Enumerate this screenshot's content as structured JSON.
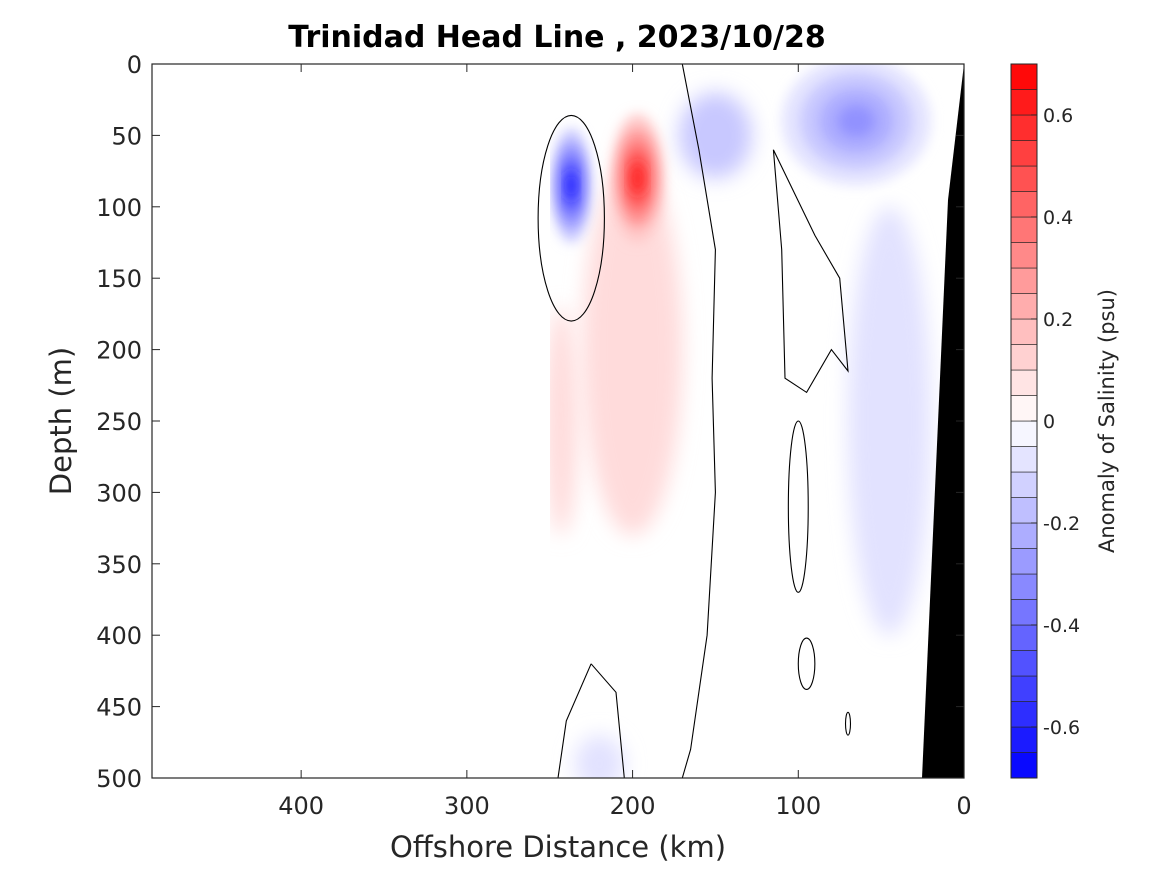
{
  "chart_data": {
    "type": "heatmap",
    "title": "Trinidad Head Line , 2023/10/28",
    "xlabel": "Offshore Distance (km)",
    "ylabel": "Depth (m)",
    "xlim": [
      490,
      0
    ],
    "ylim": [
      0,
      500
    ],
    "x_ticks": [
      {
        "value": 400,
        "label": "400"
      },
      {
        "value": 300,
        "label": "300"
      },
      {
        "value": 200,
        "label": "200"
      },
      {
        "value": 100,
        "label": "100"
      },
      {
        "value": 0,
        "label": "0"
      }
    ],
    "y_ticks": [
      {
        "value": 0,
        "label": "0"
      },
      {
        "value": 50,
        "label": "50"
      },
      {
        "value": 100,
        "label": "100"
      },
      {
        "value": 150,
        "label": "150"
      },
      {
        "value": 200,
        "label": "200"
      },
      {
        "value": 250,
        "label": "250"
      },
      {
        "value": 300,
        "label": "300"
      },
      {
        "value": 350,
        "label": "350"
      },
      {
        "value": 400,
        "label": "400"
      },
      {
        "value": 450,
        "label": "450"
      },
      {
        "value": 500,
        "label": "500"
      }
    ],
    "data_extent_km": [
      250,
      0
    ],
    "colorbar": {
      "label": "Anomaly of Salinity (psu)",
      "range": [
        -0.7,
        0.7
      ],
      "levels": [
        -0.7,
        -0.65,
        -0.6,
        -0.55,
        -0.5,
        -0.45,
        -0.4,
        -0.35,
        -0.3,
        -0.25,
        -0.2,
        -0.15,
        -0.1,
        -0.05,
        0,
        0.05,
        0.1,
        0.15,
        0.2,
        0.25,
        0.3,
        0.35,
        0.4,
        0.45,
        0.5,
        0.55,
        0.6,
        0.65,
        0.7
      ],
      "ticks": [
        {
          "value": 0.6,
          "label": "0.6"
        },
        {
          "value": 0.4,
          "label": "0.4"
        },
        {
          "value": 0.2,
          "label": "0.2"
        },
        {
          "value": 0,
          "label": "0"
        },
        {
          "value": -0.2,
          "label": "-0.2"
        },
        {
          "value": -0.4,
          "label": "-0.4"
        },
        {
          "value": -0.6,
          "label": "-0.6"
        }
      ],
      "low_color": "#0000ff",
      "mid_color": "#ffffff",
      "high_color": "#ff0000"
    },
    "anomaly_features": [
      {
        "x_km": 237,
        "depth_m": 85,
        "value": -0.6,
        "rx_km": 12,
        "ry_m": 40
      },
      {
        "x_km": 197,
        "depth_m": 80,
        "value": 0.6,
        "rx_km": 16,
        "ry_m": 45
      },
      {
        "x_km": 200,
        "depth_m": 200,
        "value": 0.1,
        "rx_km": 30,
        "ry_m": 130
      },
      {
        "x_km": 243,
        "depth_m": 250,
        "value": 0.1,
        "rx_km": 10,
        "ry_m": 80
      },
      {
        "x_km": 65,
        "depth_m": 40,
        "value": -0.3,
        "rx_km": 45,
        "ry_m": 45
      },
      {
        "x_km": 150,
        "depth_m": 50,
        "value": -0.15,
        "rx_km": 22,
        "ry_m": 30
      },
      {
        "x_km": 45,
        "depth_m": 250,
        "value": -0.08,
        "rx_km": 25,
        "ry_m": 150
      },
      {
        "x_km": 220,
        "depth_m": 490,
        "value": -0.08,
        "rx_km": 15,
        "ry_m": 20
      }
    ],
    "bathymetry_color": "#000000",
    "bathymetry_profile": [
      [
        0,
        0
      ],
      [
        25,
        500
      ]
    ]
  }
}
